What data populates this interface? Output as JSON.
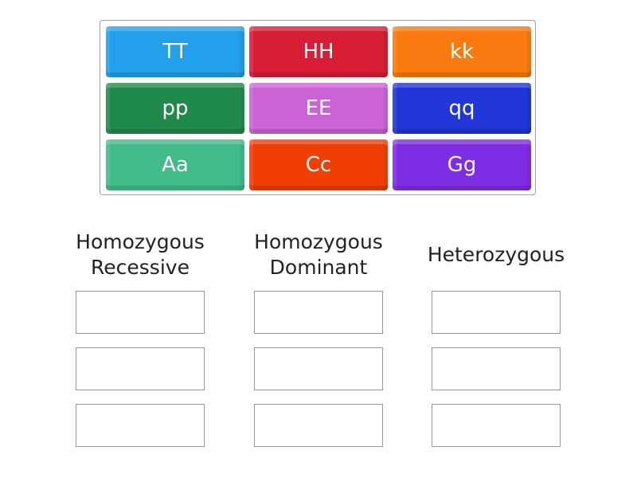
{
  "tiles": [
    {
      "label": "TT",
      "color": "#22a0ec"
    },
    {
      "label": "HH",
      "color": "#d81e34"
    },
    {
      "label": "kk",
      "color": "#fb7a10"
    },
    {
      "label": "pp",
      "color": "#208a4c"
    },
    {
      "label": "EE",
      "color": "#cb62d8"
    },
    {
      "label": "qq",
      "color": "#2036d6"
    },
    {
      "label": "Aa",
      "color": "#41bb88"
    },
    {
      "label": "Cc",
      "color": "#f03e04"
    },
    {
      "label": "Gg",
      "color": "#7d2ee4"
    }
  ],
  "categories": [
    {
      "label": "Homozygous Recessive"
    },
    {
      "label": "Homozygous Dominant"
    },
    {
      "label": "Heterozygous"
    }
  ]
}
